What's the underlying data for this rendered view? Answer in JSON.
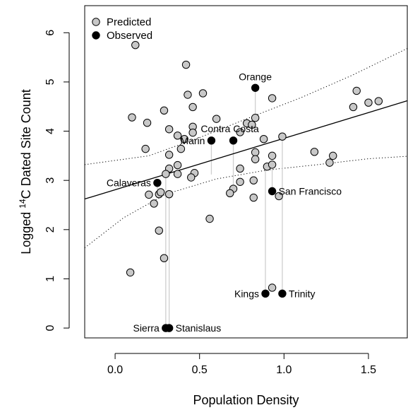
{
  "chart_data": {
    "type": "scatter",
    "xlabel": "Population Density",
    "ylabel_prefix": "Logged ",
    "ylabel_sup": "14",
    "ylabel_suffix": "C Dated Site Count",
    "xlim": [
      -0.18,
      1.73
    ],
    "ylim": [
      -0.2,
      6.55
    ],
    "x_ticks": [
      0.0,
      0.5,
      1.0,
      1.5
    ],
    "x_tick_labels": [
      "0.0",
      "0.5",
      "1.0",
      "1.5"
    ],
    "y_ticks": [
      0,
      1,
      2,
      3,
      4,
      5,
      6
    ],
    "y_tick_labels": [
      "0",
      "1",
      "2",
      "3",
      "4",
      "5",
      "6"
    ],
    "grid": false,
    "legend": {
      "position": "top-left",
      "entries": [
        {
          "label": "Predicted",
          "color": "#c8c8c8"
        },
        {
          "label": "Observed",
          "color": "#000000"
        }
      ]
    },
    "regression_line": {
      "intercept": 2.81,
      "slope": 1.045
    },
    "confidence_band": {
      "upper": [
        [
          -0.18,
          3.32
        ],
        [
          0.2,
          3.5
        ],
        [
          0.5,
          3.87
        ],
        [
          0.8,
          4.28
        ],
        [
          1.1,
          4.68
        ],
        [
          1.4,
          5.13
        ],
        [
          1.73,
          5.68
        ]
      ],
      "lower": [
        [
          -0.18,
          1.63
        ],
        [
          0.05,
          2.24
        ],
        [
          0.3,
          2.72
        ],
        [
          0.6,
          3.03
        ],
        [
          0.9,
          3.21
        ],
        [
          1.2,
          3.32
        ],
        [
          1.5,
          3.44
        ],
        [
          1.73,
          3.49
        ]
      ]
    },
    "series": [
      {
        "name": "Predicted",
        "color": "#c8c8c8",
        "points": [
          [
            0.12,
            5.75
          ],
          [
            0.42,
            5.35
          ],
          [
            0.43,
            4.74
          ],
          [
            0.52,
            4.77
          ],
          [
            0.29,
            4.42
          ],
          [
            0.46,
            4.49
          ],
          [
            0.1,
            4.28
          ],
          [
            0.19,
            4.17
          ],
          [
            0.32,
            4.04
          ],
          [
            0.46,
            4.09
          ],
          [
            0.46,
            3.97
          ],
          [
            0.6,
            4.25
          ],
          [
            0.37,
            3.91
          ],
          [
            0.41,
            3.84
          ],
          [
            0.39,
            3.64
          ],
          [
            0.32,
            3.52
          ],
          [
            0.18,
            3.64
          ],
          [
            0.37,
            3.31
          ],
          [
            0.32,
            3.24
          ],
          [
            0.3,
            3.13
          ],
          [
            0.37,
            3.13
          ],
          [
            0.47,
            3.15
          ],
          [
            0.45,
            3.06
          ],
          [
            0.2,
            2.71
          ],
          [
            0.26,
            2.72
          ],
          [
            0.27,
            2.76
          ],
          [
            0.32,
            2.72
          ],
          [
            0.23,
            2.53
          ],
          [
            0.26,
            1.98
          ],
          [
            0.29,
            1.42
          ],
          [
            0.09,
            1.13
          ],
          [
            0.56,
            2.22
          ],
          [
            0.74,
            3.98
          ],
          [
            0.78,
            4.16
          ],
          [
            0.81,
            4.13
          ],
          [
            0.83,
            4.27
          ],
          [
            0.93,
            4.67
          ],
          [
            0.88,
            3.84
          ],
          [
            0.83,
            3.57
          ],
          [
            0.83,
            3.43
          ],
          [
            0.74,
            3.24
          ],
          [
            0.82,
            3.0
          ],
          [
            0.74,
            2.97
          ],
          [
            0.7,
            2.83
          ],
          [
            0.68,
            2.74
          ],
          [
            0.82,
            2.65
          ],
          [
            0.9,
            3.28
          ],
          [
            0.93,
            3.32
          ],
          [
            0.93,
            3.5
          ],
          [
            0.99,
            3.89
          ],
          [
            0.97,
            2.68
          ],
          [
            0.93,
            0.82
          ],
          [
            1.18,
            3.58
          ],
          [
            1.27,
            3.36
          ],
          [
            1.29,
            3.5
          ],
          [
            1.41,
            4.49
          ],
          [
            1.43,
            4.82
          ],
          [
            1.5,
            4.58
          ],
          [
            1.56,
            4.61
          ]
        ]
      },
      {
        "name": "Observed",
        "color": "#000000",
        "points": [
          [
            0.83,
            4.88
          ],
          [
            0.57,
            3.81
          ],
          [
            0.7,
            3.81
          ],
          [
            0.25,
            2.95
          ],
          [
            0.93,
            2.78
          ],
          [
            0.89,
            0.7
          ],
          [
            0.99,
            0.7
          ],
          [
            0.3,
            0.0
          ],
          [
            0.32,
            0.0
          ]
        ]
      }
    ],
    "connectors": [
      {
        "x": 0.83,
        "from": 4.27,
        "to": 4.88
      },
      {
        "x": 0.57,
        "from": 3.12,
        "to": 3.81
      },
      {
        "x": 0.7,
        "from": 2.83,
        "to": 3.81
      },
      {
        "x": 0.25,
        "from": 2.72,
        "to": 2.95
      },
      {
        "x": 0.93,
        "from": 3.32,
        "to": 2.78
      },
      {
        "x": 0.89,
        "from": 3.28,
        "to": 0.7
      },
      {
        "x": 0.99,
        "from": 3.89,
        "to": 0.7
      },
      {
        "x": 0.3,
        "from": 3.13,
        "to": 0.0
      },
      {
        "x": 0.32,
        "from": 2.72,
        "to": 0.0
      }
    ],
    "annotations": [
      {
        "text": "Orange",
        "x": 0.83,
        "y": 4.88,
        "pos": "above"
      },
      {
        "text": "Contra Costa",
        "x": 0.7,
        "y": 3.81,
        "pos": "above-left"
      },
      {
        "text": "Marin",
        "x": 0.57,
        "y": 3.81,
        "pos": "left"
      },
      {
        "text": "Calaveras",
        "x": 0.25,
        "y": 2.95,
        "pos": "left"
      },
      {
        "text": "San Francisco",
        "x": 0.93,
        "y": 2.78,
        "pos": "right"
      },
      {
        "text": "Kings",
        "x": 0.89,
        "y": 0.7,
        "pos": "left"
      },
      {
        "text": "Trinity",
        "x": 0.99,
        "y": 0.7,
        "pos": "right"
      },
      {
        "text": "Sierra",
        "x": 0.3,
        "y": 0.0,
        "pos": "left"
      },
      {
        "text": "Stanislaus",
        "x": 0.32,
        "y": 0.0,
        "pos": "right"
      }
    ]
  }
}
